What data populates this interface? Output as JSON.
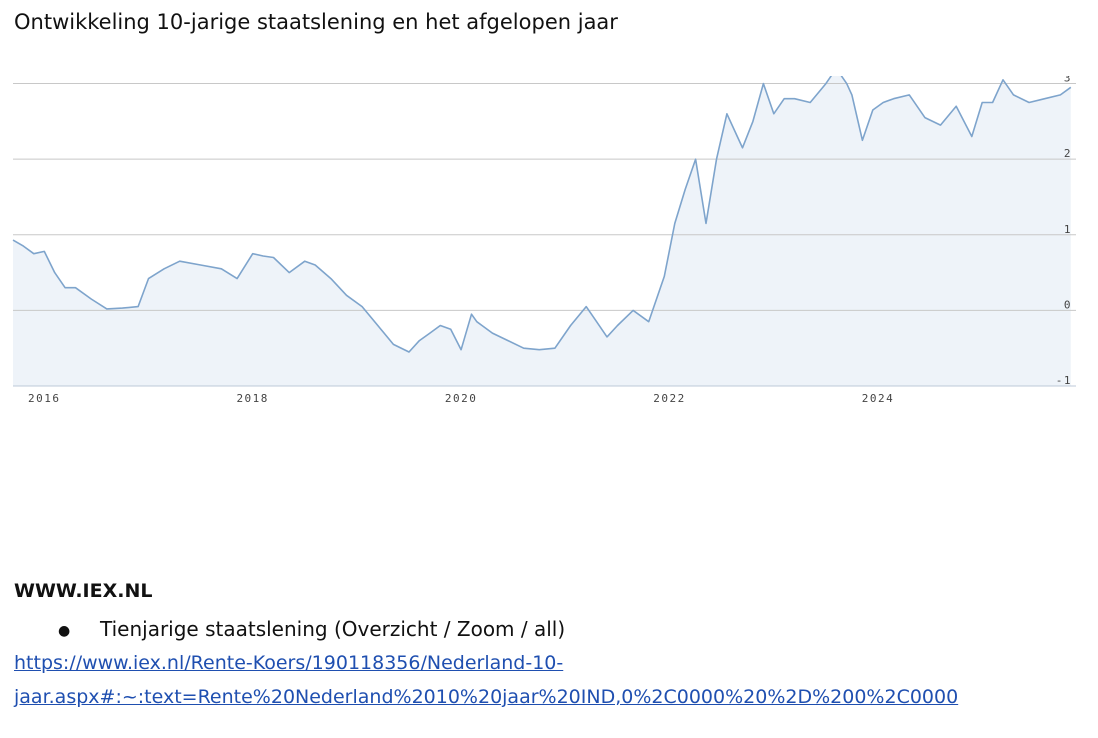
{
  "document": {
    "title": "Ontwikkeling 10-jarige staatslening en het afgelopen jaar",
    "source": "WWW.IEX.NL",
    "bullet": "Tienjarige staatslening (Overzicht / Zoom / all)",
    "link_line1": "https://www.iex.nl/Rente-Koers/190118356/Nederland-10-",
    "link_line2": "jaar.aspx#:~:text=Rente%20Nederland%2010%20jaar%20IND,0%2C0000%20%2D%200%2C0000"
  },
  "chart_data": {
    "type": "area",
    "title": "",
    "xlabel": "",
    "ylabel": "",
    "xlim": [
      2015.7,
      2025.9
    ],
    "ylim": [
      -1,
      3.1
    ],
    "grid": true,
    "x_ticks": [
      2016,
      2018,
      2020,
      2022,
      2024
    ],
    "x_tick_labels": [
      "2016",
      "2018",
      "2020",
      "2022",
      "2024"
    ],
    "y_ticks": [
      -1,
      0,
      1,
      2,
      3
    ],
    "y_tick_labels": [
      "-1",
      "0",
      "1",
      "2",
      "3"
    ],
    "colors": {
      "line": "#7ea4cc",
      "fill": "#eef3f9",
      "grid": "#c8c8c8",
      "axis": "#bcc8d8"
    },
    "series": [
      {
        "x": [
          2015.7,
          2015.8,
          2015.9,
          2016.0,
          2016.1,
          2016.2,
          2016.3,
          2016.45,
          2016.6,
          2016.75,
          2016.9,
          2017.0,
          2017.15,
          2017.3,
          2017.5,
          2017.7,
          2017.85,
          2018.0,
          2018.1,
          2018.2,
          2018.35,
          2018.5,
          2018.6,
          2018.75,
          2018.9,
          2019.05,
          2019.2,
          2019.35,
          2019.5,
          2019.6,
          2019.7,
          2019.8,
          2019.9,
          2020.0,
          2020.1,
          2020.15,
          2020.2,
          2020.3,
          2020.45,
          2020.6,
          2020.75,
          2020.9,
          2021.05,
          2021.2,
          2021.3,
          2021.4,
          2021.5,
          2021.65,
          2021.8,
          2021.95,
          2022.05,
          2022.15,
          2022.25,
          2022.35,
          2022.45,
          2022.55,
          2022.65,
          2022.7,
          2022.8,
          2022.9,
          2023.0,
          2023.1,
          2023.2,
          2023.35,
          2023.5,
          2023.6,
          2023.7,
          2023.75,
          2023.85,
          2023.95,
          2024.05,
          2024.15,
          2024.3,
          2024.45,
          2024.6,
          2024.75,
          2024.9,
          2025.0,
          2025.1,
          2025.2,
          2025.3,
          2025.45,
          2025.6,
          2025.75,
          2025.85
        ],
        "y": [
          0.93,
          0.85,
          0.75,
          0.78,
          0.5,
          0.3,
          0.3,
          0.15,
          0.02,
          0.03,
          0.05,
          0.42,
          0.55,
          0.65,
          0.6,
          0.55,
          0.42,
          0.75,
          0.72,
          0.7,
          0.5,
          0.65,
          0.6,
          0.42,
          0.2,
          0.05,
          -0.2,
          -0.45,
          -0.55,
          -0.4,
          -0.3,
          -0.2,
          -0.25,
          -0.52,
          -0.05,
          -0.15,
          -0.2,
          -0.3,
          -0.4,
          -0.5,
          -0.52,
          -0.5,
          -0.2,
          0.05,
          -0.15,
          -0.35,
          -0.2,
          0.0,
          -0.15,
          0.45,
          1.15,
          1.6,
          2.0,
          1.15,
          2.0,
          2.6,
          2.3,
          2.15,
          2.5,
          3.0,
          2.6,
          2.8,
          2.8,
          2.75,
          3.0,
          3.2,
          3.0,
          2.85,
          2.25,
          2.65,
          2.75,
          2.8,
          2.85,
          2.55,
          2.45,
          2.7,
          2.3,
          2.75,
          2.75,
          3.05,
          2.85,
          2.75,
          2.8,
          2.85,
          2.95
        ]
      }
    ]
  }
}
